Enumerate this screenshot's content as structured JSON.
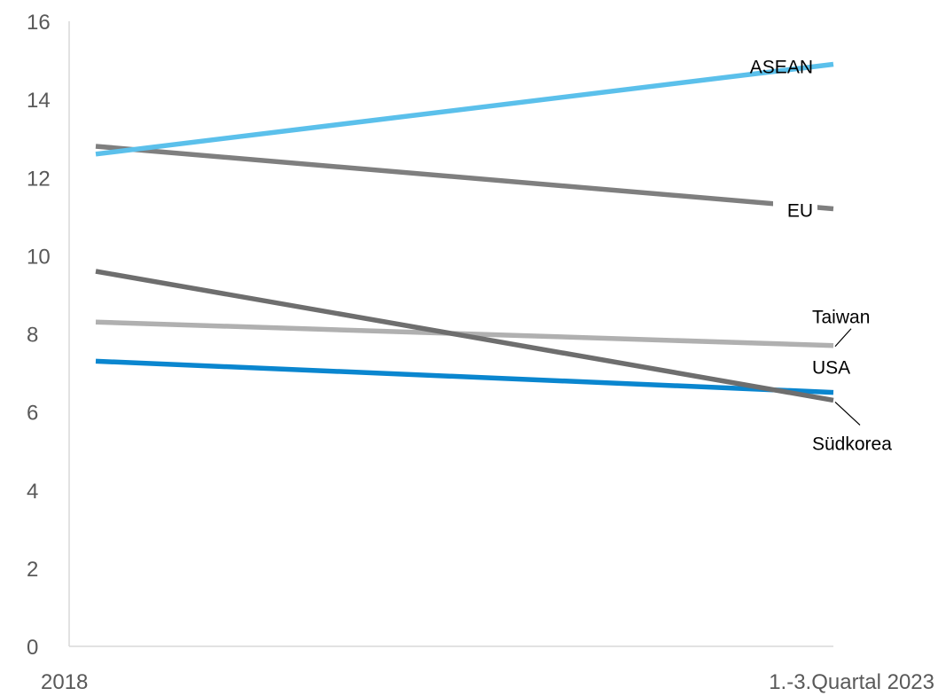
{
  "chart_data": {
    "type": "line",
    "title": "",
    "xlabel": "",
    "ylabel": "",
    "categories": [
      "2018",
      "1.-3.Quartal 2023"
    ],
    "ylim": [
      0,
      16
    ],
    "yticks": [
      "0",
      "2",
      "4",
      "6",
      "8",
      "10",
      "12",
      "14",
      "16"
    ],
    "grid": false,
    "legend": "none",
    "series": [
      {
        "name": "ASEAN",
        "values": [
          12.6,
          14.9
        ],
        "color": "#5BC0EB"
      },
      {
        "name": "EU",
        "values": [
          12.8,
          11.2
        ],
        "color": "#7F7F7F"
      },
      {
        "name": "Taiwan",
        "values": [
          8.3,
          7.7
        ],
        "color": "#B0B0B0"
      },
      {
        "name": "USA",
        "values": [
          7.3,
          6.5
        ],
        "color": "#0A86CF"
      },
      {
        "name": "Südkorea",
        "values": [
          9.6,
          6.3
        ],
        "color": "#6E6E6E"
      }
    ]
  }
}
